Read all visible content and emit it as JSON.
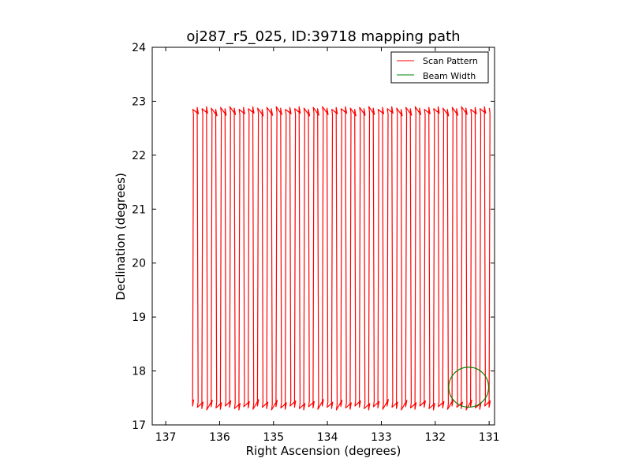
{
  "chart_data": {
    "type": "line",
    "title": "oj287_r5_025, ID:39718 mapping path",
    "xlabel": "Right Ascension (degrees)",
    "ylabel": "Declination (degrees)",
    "xlim": [
      137.25,
      130.9
    ],
    "ylim": [
      17,
      24
    ],
    "x_ticks": [
      137,
      136,
      135,
      134,
      133,
      132,
      131
    ],
    "y_ticks": [
      17,
      18,
      19,
      20,
      21,
      22,
      23,
      24
    ],
    "grid": false,
    "legend_position": "top-right",
    "series": [
      {
        "name": "Scan Pattern",
        "color": "#ff0000",
        "pattern": {
          "ra_start": 136.48,
          "ra_end": 130.98,
          "sweeps": 64,
          "dec_low": 17.35,
          "dec_high": 22.88
        }
      },
      {
        "name": "Beam Width",
        "color": "#008000",
        "circle": {
          "ra": 131.38,
          "dec": 17.7,
          "radius_deg": 0.37
        }
      }
    ]
  }
}
